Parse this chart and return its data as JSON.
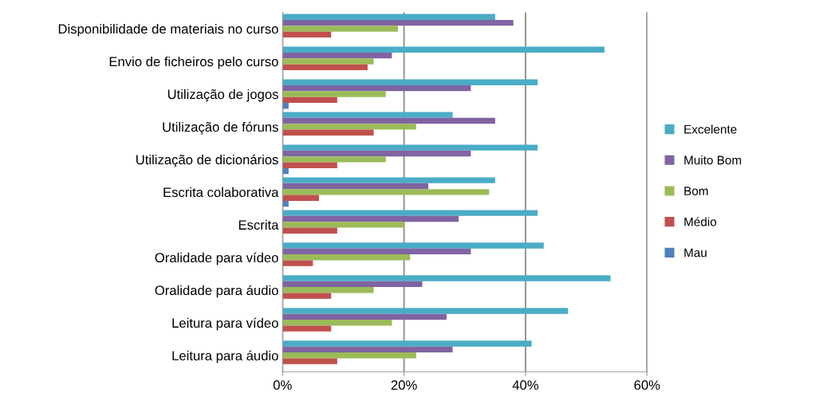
{
  "chart_data": {
    "type": "bar",
    "orientation": "horizontal",
    "categories": [
      "Disponibilidade de materiais no curso",
      "Envio de ficheiros pelo curso",
      "Utilização de jogos",
      "Utilização de fóruns",
      "Utilização de dicionários",
      "Escrita colaborativa",
      "Escrita",
      "Oralidade para vídeo",
      "Oralidade para áudio",
      "Leitura para vídeo",
      "Leitura para áudio"
    ],
    "series": [
      {
        "name": "Excelente",
        "color": "#4bacc6",
        "values": [
          35,
          53,
          42,
          28,
          42,
          35,
          42,
          43,
          54,
          47,
          41
        ]
      },
      {
        "name": "Muito Bom",
        "color": "#8064a2",
        "values": [
          38,
          18,
          31,
          35,
          31,
          24,
          29,
          31,
          23,
          27,
          28
        ]
      },
      {
        "name": "Bom",
        "color": "#9bbb59",
        "values": [
          19,
          15,
          17,
          22,
          17,
          34,
          20,
          21,
          15,
          18,
          22
        ]
      },
      {
        "name": "Médio",
        "color": "#c0504d",
        "values": [
          8,
          14,
          9,
          15,
          9,
          6,
          9,
          5,
          8,
          8,
          9
        ]
      },
      {
        "name": "Mau",
        "color": "#4f81bd",
        "values": [
          0,
          0,
          1,
          0,
          1,
          1,
          0,
          0,
          0,
          0,
          0
        ]
      }
    ],
    "xlim": [
      0,
      60
    ],
    "xticks": [
      {
        "value": 0,
        "label": "0%"
      },
      {
        "value": 20,
        "label": "20%"
      },
      {
        "value": 40,
        "label": "40%"
      },
      {
        "value": 60,
        "label": "60%"
      }
    ],
    "grid": "x",
    "legend": "right"
  }
}
